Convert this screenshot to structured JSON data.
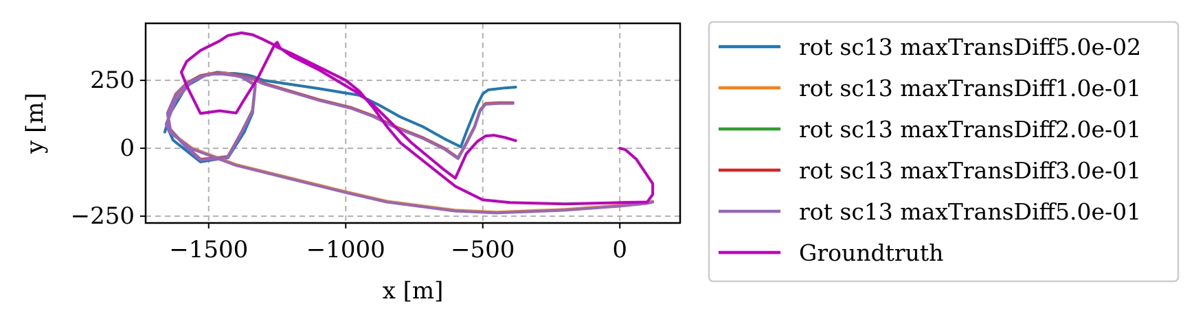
{
  "chart_data": {
    "type": "line",
    "title": "",
    "xlabel": "x [m]",
    "ylabel": "y [m]",
    "xlim": [
      -1730,
      220
    ],
    "ylim": [
      -275,
      460
    ],
    "x_ticks": [
      -1500,
      -1000,
      -500,
      0
    ],
    "x_tick_labels": [
      "−1500",
      "−1000",
      "−500",
      "0"
    ],
    "y_ticks": [
      -250,
      0,
      250
    ],
    "y_tick_labels": [
      "−250",
      "0",
      "250"
    ],
    "grid": true,
    "legend_position": "outside-right",
    "series": [
      {
        "name": "rot sc13 maxTransDiff5.0e-02",
        "color": "#1f77b4",
        "x": [
          -380,
          -420,
          -480,
          -500,
          -520,
          -560,
          -580,
          -640,
          -720,
          -800,
          -880,
          -950,
          -1100,
          -1300,
          -1340,
          -1360,
          -1400,
          -1460,
          -1530,
          -1580,
          -1610,
          -1640,
          -1650,
          -1630,
          -1580,
          -1530,
          -1470,
          -1430,
          -1370,
          -1340,
          -1330,
          -1380,
          -1440,
          -1470,
          -1510,
          -1580,
          -1640,
          -1660
        ],
        "y": [
          225,
          222,
          215,
          200,
          160,
          60,
          5,
          35,
          80,
          115,
          160,
          195,
          220,
          250,
          265,
          270,
          275,
          278,
          265,
          240,
          205,
          150,
          75,
          30,
          -10,
          -50,
          -40,
          -35,
          60,
          130,
          230,
          265,
          278,
          280,
          270,
          230,
          130,
          60
        ]
      },
      {
        "name": "rot sc13 maxTransDiff1.0e-01",
        "color": "#ff7f0e",
        "x": [
          -390,
          -440,
          -490,
          -510,
          -530,
          -560,
          -590,
          -640,
          -720,
          -820,
          -900,
          -980,
          -1100,
          -1300,
          -1340,
          -1400,
          -1470,
          -1530,
          -1580,
          -1620,
          -1650,
          -1640,
          -1590,
          -1530,
          -1470,
          -1430,
          -1380,
          -1340,
          -1330,
          -1380,
          -1440,
          -1500,
          -1560,
          -1620,
          -1655,
          -1640,
          -1560,
          -1400,
          -1200,
          -1000,
          -850,
          -700,
          -600,
          -450,
          -200,
          0,
          100,
          120
        ],
        "y": [
          168,
          168,
          165,
          140,
          80,
          20,
          -35,
          0,
          40,
          80,
          120,
          150,
          180,
          240,
          258,
          270,
          278,
          268,
          240,
          200,
          130,
          70,
          15,
          -40,
          -35,
          -30,
          60,
          140,
          235,
          265,
          278,
          275,
          250,
          180,
          90,
          60,
          0,
          -60,
          -110,
          -160,
          -195,
          -215,
          -228,
          -235,
          -225,
          -210,
          -200,
          -195
        ]
      },
      {
        "name": "rot sc13 maxTransDiff2.0e-01",
        "color": "#2ca02c",
        "x": [
          -390,
          -440,
          -490,
          -510,
          -530,
          -560,
          -590,
          -640,
          -720,
          -820,
          -900,
          -980,
          -1100,
          -1300,
          -1340,
          -1400,
          -1470,
          -1530,
          -1580,
          -1620,
          -1650,
          -1640,
          -1590,
          -1530,
          -1470,
          -1430,
          -1380,
          -1340,
          -1330
        ],
        "y": [
          166,
          166,
          163,
          138,
          78,
          18,
          -37,
          -2,
          38,
          78,
          118,
          148,
          178,
          238,
          256,
          268,
          276,
          266,
          238,
          198,
          128,
          68,
          13,
          -42,
          -37,
          -32,
          58,
          138,
          233
        ]
      },
      {
        "name": "rot sc13 maxTransDiff3.0e-01",
        "color": "#d62728",
        "x": [
          -390,
          -440,
          -490,
          -510,
          -530,
          -560,
          -590,
          -640,
          -720,
          -820,
          -900,
          -980,
          -1100,
          -1300,
          -1340,
          -1400,
          -1470,
          -1530,
          -1580,
          -1620,
          -1650,
          -1640,
          -1590,
          -1530,
          -1470,
          -1430,
          -1380,
          -1340,
          -1330
        ],
        "y": [
          167,
          167,
          164,
          139,
          79,
          19,
          -36,
          -1,
          39,
          79,
          119,
          149,
          179,
          239,
          257,
          269,
          277,
          267,
          239,
          199,
          129,
          69,
          14,
          -41,
          -36,
          -31,
          59,
          139,
          234
        ]
      },
      {
        "name": "rot sc13 maxTransDiff5.0e-01",
        "color": "#9467bd",
        "x": [
          -390,
          -440,
          -490,
          -510,
          -530,
          -560,
          -590,
          -640,
          -720,
          -820,
          -900,
          -980,
          -1100,
          -1300,
          -1340,
          -1400,
          -1470,
          -1530,
          -1580,
          -1620,
          -1650,
          -1640,
          -1590,
          -1530,
          -1470,
          -1430,
          -1380,
          -1340,
          -1330,
          -1380,
          -1440,
          -1500,
          -1560,
          -1620,
          -1655,
          -1640,
          -1560,
          -1400,
          -1200,
          -1000,
          -850,
          -700,
          -600,
          -450,
          -200,
          0,
          100,
          120
        ],
        "y": [
          165,
          165,
          162,
          137,
          77,
          17,
          -38,
          -3,
          37,
          77,
          117,
          147,
          177,
          237,
          255,
          267,
          275,
          265,
          237,
          197,
          127,
          67,
          12,
          -43,
          -38,
          -33,
          57,
          137,
          232,
          262,
          275,
          272,
          247,
          177,
          87,
          57,
          -3,
          -63,
          -113,
          -163,
          -198,
          -218,
          -231,
          -238,
          -228,
          -213,
          -203,
          -198
        ]
      },
      {
        "name": "Groundtruth",
        "color": "#bf00bf",
        "x": [
          -380,
          -420,
          -460,
          -490,
          -520,
          -560,
          -600,
          -640,
          -700,
          -760,
          -800,
          -850,
          -900,
          -950,
          -1000,
          -1100,
          -1200,
          -1240,
          -1250,
          -1260,
          -1280,
          -1320,
          -1370,
          -1400,
          -1460,
          -1530,
          -1580,
          -1600,
          -1580,
          -1530,
          -1460,
          -1430,
          -1380,
          -1340,
          -1300,
          -1260,
          -1250,
          -1200,
          -1100,
          -1000,
          -950,
          -900,
          -850,
          -800,
          -700,
          -600,
          -500,
          -400,
          -200,
          0,
          100,
          120,
          120,
          100,
          60,
          20,
          0
        ],
        "y": [
          28,
          40,
          48,
          45,
          25,
          -20,
          -110,
          -80,
          -30,
          20,
          60,
          110,
          160,
          200,
          230,
          290,
          340,
          370,
          390,
          380,
          340,
          260,
          180,
          130,
          138,
          128,
          230,
          280,
          320,
          360,
          395,
          415,
          425,
          418,
          400,
          380,
          372,
          350,
          300,
          250,
          210,
          150,
          80,
          20,
          -60,
          -140,
          -190,
          -200,
          -205,
          -200,
          -198,
          -170,
          -130,
          -100,
          -40,
          -5,
          0
        ]
      }
    ]
  }
}
